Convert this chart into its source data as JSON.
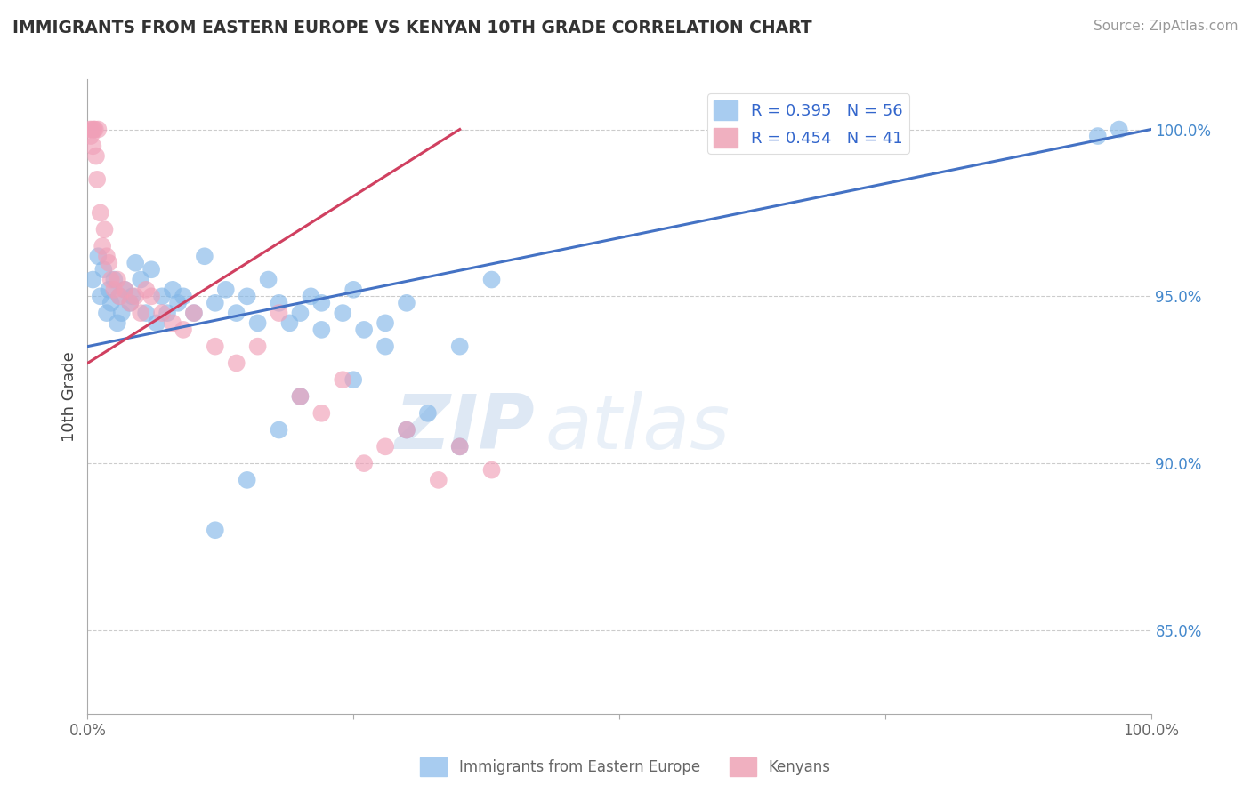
{
  "title": "IMMIGRANTS FROM EASTERN EUROPE VS KENYAN 10TH GRADE CORRELATION CHART",
  "source": "Source: ZipAtlas.com",
  "ylabel": "10th Grade",
  "right_yticks": [
    85.0,
    90.0,
    95.0,
    100.0
  ],
  "legend_blue_r": "R = 0.395",
  "legend_blue_n": "N = 56",
  "legend_pink_r": "R = 0.454",
  "legend_pink_n": "N = 41",
  "blue_color": "#85b8e8",
  "pink_color": "#f0a0b8",
  "blue_line_color": "#4472c4",
  "pink_line_color": "#d04060",
  "watermark_zip": "ZIP",
  "watermark_atlas": "atlas",
  "blue_scatter_x": [
    0.5,
    1.0,
    1.2,
    1.5,
    1.8,
    2.0,
    2.2,
    2.5,
    2.8,
    3.0,
    3.2,
    3.5,
    4.0,
    4.2,
    4.5,
    5.0,
    5.5,
    6.0,
    6.5,
    7.0,
    7.5,
    8.0,
    8.5,
    9.0,
    10.0,
    11.0,
    12.0,
    13.0,
    14.0,
    15.0,
    16.0,
    17.0,
    18.0,
    19.0,
    20.0,
    21.0,
    22.0,
    24.0,
    25.0,
    26.0,
    28.0,
    30.0,
    32.0,
    35.0,
    38.0,
    20.0,
    25.0,
    30.0,
    35.0,
    28.0,
    22.0,
    18.0,
    15.0,
    12.0,
    95.0,
    97.0
  ],
  "blue_scatter_y": [
    95.5,
    96.2,
    95.0,
    95.8,
    94.5,
    95.2,
    94.8,
    95.5,
    94.2,
    95.0,
    94.5,
    95.2,
    94.8,
    95.0,
    96.0,
    95.5,
    94.5,
    95.8,
    94.2,
    95.0,
    94.5,
    95.2,
    94.8,
    95.0,
    94.5,
    96.2,
    94.8,
    95.2,
    94.5,
    95.0,
    94.2,
    95.5,
    94.8,
    94.2,
    94.5,
    95.0,
    94.8,
    94.5,
    95.2,
    94.0,
    93.5,
    94.8,
    91.5,
    93.5,
    95.5,
    92.0,
    92.5,
    91.0,
    90.5,
    94.2,
    94.0,
    91.0,
    89.5,
    88.0,
    99.8,
    100.0
  ],
  "pink_scatter_x": [
    0.2,
    0.3,
    0.4,
    0.5,
    0.6,
    0.7,
    0.8,
    0.9,
    1.0,
    1.2,
    1.4,
    1.6,
    1.8,
    2.0,
    2.2,
    2.5,
    2.8,
    3.0,
    3.5,
    4.0,
    4.5,
    5.0,
    5.5,
    6.0,
    7.0,
    8.0,
    9.0,
    10.0,
    12.0,
    14.0,
    16.0,
    18.0,
    20.0,
    22.0,
    24.0,
    26.0,
    28.0,
    30.0,
    33.0,
    35.0,
    38.0
  ],
  "pink_scatter_y": [
    100.0,
    99.8,
    100.0,
    99.5,
    100.0,
    100.0,
    99.2,
    98.5,
    100.0,
    97.5,
    96.5,
    97.0,
    96.2,
    96.0,
    95.5,
    95.2,
    95.5,
    95.0,
    95.2,
    94.8,
    95.0,
    94.5,
    95.2,
    95.0,
    94.5,
    94.2,
    94.0,
    94.5,
    93.5,
    93.0,
    93.5,
    94.5,
    92.0,
    91.5,
    92.5,
    90.0,
    90.5,
    91.0,
    89.5,
    90.5,
    89.8
  ]
}
